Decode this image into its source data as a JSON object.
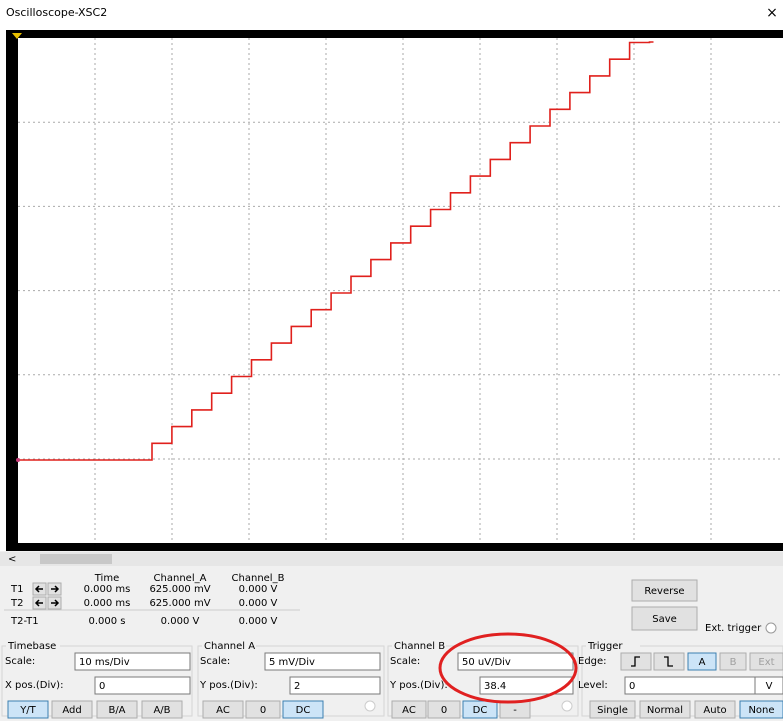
{
  "window": {
    "title": "Oscilloscope-XSC2",
    "close": "×"
  },
  "scrollbar": {
    "left": "<"
  },
  "cursors": {
    "headers": [
      "Time",
      "Channel_A",
      "Channel_B"
    ],
    "rows": [
      {
        "label": "T1",
        "values": [
          "0.000 ms",
          "625.000 mV",
          "0.000 V"
        ]
      },
      {
        "label": "T2",
        "values": [
          "0.000 ms",
          "625.000 mV",
          "0.000 V"
        ]
      },
      {
        "label": "T2-T1",
        "values": [
          "0.000 s",
          "0.000 V",
          "0.000 V"
        ]
      }
    ]
  },
  "buttons": {
    "reverse": "Reverse",
    "save": "Save",
    "ext_trigger": "Ext. trigger"
  },
  "timebase": {
    "title": "Timebase",
    "scale_label": "Scale:",
    "scale": "10 ms/Div",
    "pos_label": "X pos.(Div):",
    "pos": "0",
    "modes": [
      "Y/T",
      "Add",
      "B/A",
      "A/B"
    ]
  },
  "channel_a": {
    "title": "Channel A",
    "scale_label": "Scale:",
    "scale": "5 mV/Div",
    "pos_label": "Y pos.(Div):",
    "pos": "2",
    "coupling": [
      "AC",
      "0",
      "DC"
    ]
  },
  "channel_b": {
    "title": "Channel B",
    "scale_label": "Scale:",
    "scale": "50 uV/Div",
    "pos_label": "Y pos.(Div):",
    "pos": "38.4",
    "coupling": [
      "AC",
      "0",
      "DC",
      "-"
    ]
  },
  "trigger": {
    "title": "Trigger",
    "edge_label": "Edge:",
    "sources": [
      "A",
      "B",
      "Ext"
    ],
    "level_label": "Level:",
    "level": "0",
    "level_unit": "V",
    "modes": [
      "Single",
      "Normal",
      "Auto",
      "None"
    ]
  }
}
